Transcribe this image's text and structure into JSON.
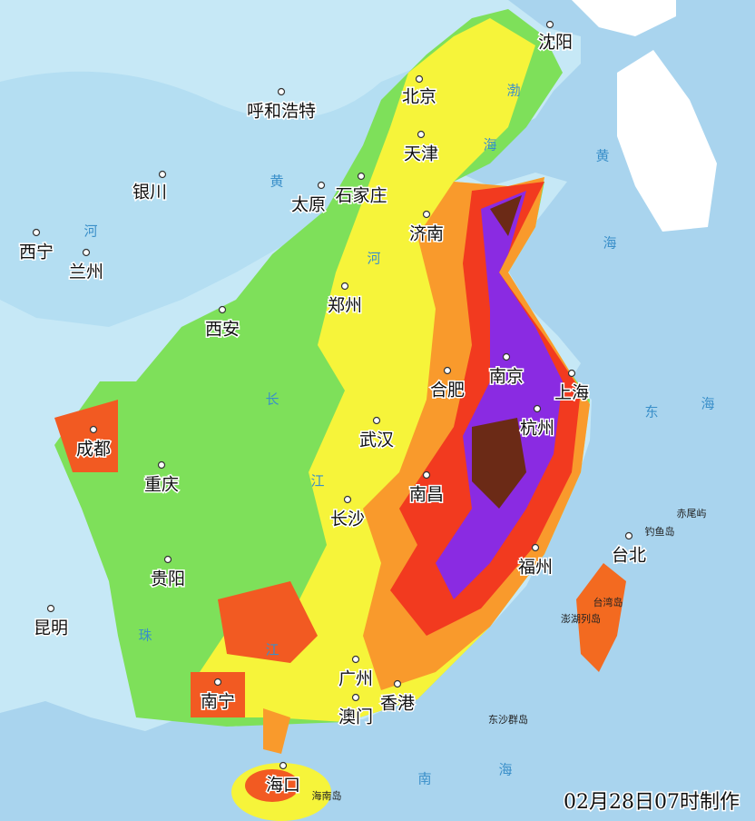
{
  "cities": [
    "沈阳",
    "北京",
    "呼和浩特",
    "天津",
    "银川",
    "太原",
    "石家庄",
    "济南",
    "西宁",
    "兰州",
    "郑州",
    "西安",
    "合肥",
    "南京",
    "上海",
    "杭州",
    "武汉",
    "成都",
    "重庆",
    "南昌",
    "长沙",
    "福州",
    "台北",
    "贵阳",
    "昆明",
    "南宁",
    "广州",
    "香港",
    "澳门",
    "海口"
  ],
  "islands": [
    "赤尾屿",
    "钓鱼岛",
    "台湾岛",
    "澎湖列岛",
    "东沙群岛",
    "海南岛"
  ],
  "water_labels": [
    "渤",
    "海",
    "黄",
    "海",
    "东",
    "海",
    "南",
    "海",
    "黄",
    "河",
    "河",
    "长",
    "江",
    "珠",
    "江"
  ],
  "timestamp": "02月28日07时制作"
}
